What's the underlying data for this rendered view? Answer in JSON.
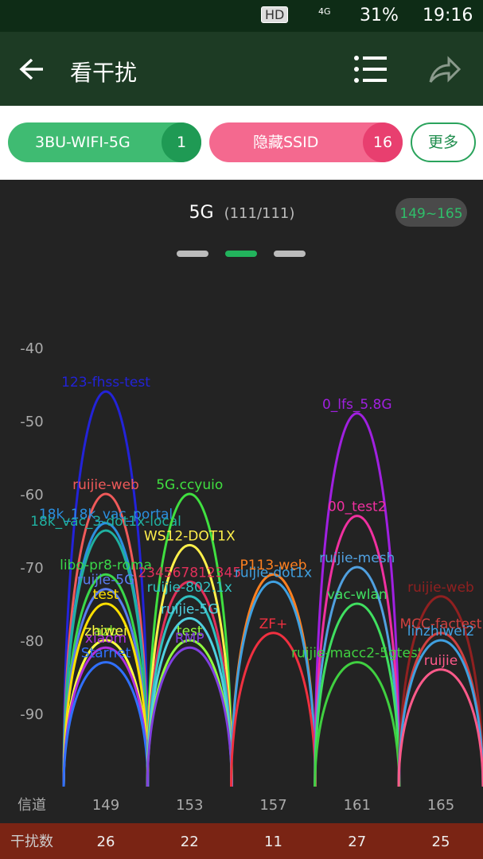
{
  "status_bar": {
    "hd": "HD",
    "network": "4G",
    "battery": "31%",
    "time": "19:16"
  },
  "header": {
    "title": "看干扰"
  },
  "chips": [
    {
      "label": "3BU-WIFI-5G",
      "count": 1
    },
    {
      "label": "隐藏SSID",
      "count": 16
    }
  ],
  "chips_more": "更多",
  "chart_data": {
    "type": "arc",
    "title": "5G",
    "subtitle": "(111/111)",
    "range_label": "149~165",
    "x_label": "信道",
    "count_label": "干扰数",
    "categories": [
      149,
      153,
      157,
      161,
      165
    ],
    "interference_counts": [
      26,
      22,
      11,
      27,
      25
    ],
    "ylim": [
      -100,
      -30
    ],
    "yticks": [
      -40,
      -50,
      -60,
      -70,
      -80,
      -90
    ],
    "series": [
      {
        "name": "123-fhss-test",
        "channel": 149,
        "value": -46,
        "color": "#2323d8"
      },
      {
        "name": "ruijie-web",
        "channel": 149,
        "value": -60,
        "color": "#f05a5a"
      },
      {
        "name": "18k_18k_vac_portal",
        "channel": 149,
        "value": -64,
        "color": "#2b8fe0"
      },
      {
        "name": "18k_vac_3-dot1x-local",
        "channel": 149,
        "value": -65,
        "color": "#20b0a0"
      },
      {
        "name": "libo-pr8-roma",
        "channel": 149,
        "value": -71,
        "color": "#3ad84a"
      },
      {
        "name": "ruijie-5G",
        "channel": 149,
        "value": -73,
        "color": "#5a7cf0"
      },
      {
        "name": "test",
        "channel": 149,
        "value": -75,
        "color": "#ffe000"
      },
      {
        "name": "azb",
        "channel": 149,
        "value": -80,
        "color": "#7adf30"
      },
      {
        "name": "zhiwei",
        "channel": 149,
        "value": -80,
        "color": "#ffff40"
      },
      {
        "name": "xiaom",
        "channel": 149,
        "value": -81,
        "color": "#b030e0"
      },
      {
        "name": "Starnet",
        "channel": 149,
        "value": -83,
        "color": "#3070ff"
      },
      {
        "name": "5G.ccyuio",
        "channel": 153,
        "value": -60,
        "color": "#40e040"
      },
      {
        "name": "WS12-DOT1X",
        "channel": 153,
        "value": -67,
        "color": "#fff04a"
      },
      {
        "name": "234567812345",
        "channel": 153,
        "value": -72,
        "color": "#e0305a"
      },
      {
        "name": "ruijie-802.1x",
        "channel": 153,
        "value": -74,
        "color": "#30c0c0"
      },
      {
        "name": "ruijie-5G",
        "channel": 153,
        "value": -77,
        "color": "#50d0e0"
      },
      {
        "name": "test",
        "channel": 153,
        "value": -80,
        "color": "#90ff40"
      },
      {
        "name": "RMP",
        "channel": 153,
        "value": -81,
        "color": "#8040e0"
      },
      {
        "name": "P113-web",
        "channel": 157,
        "value": -71,
        "color": "#ff8020"
      },
      {
        "name": "ruijie-dot1x",
        "channel": 157,
        "value": -72,
        "color": "#40a0e0"
      },
      {
        "name": "ZF+",
        "channel": 157,
        "value": -79,
        "color": "#f03040"
      },
      {
        "name": "0_lfs_5.8G",
        "channel": 161,
        "value": -49,
        "color": "#a020e0"
      },
      {
        "name": "00_test2",
        "channel": 161,
        "value": -63,
        "color": "#f030a0"
      },
      {
        "name": "ruijie-mesh",
        "channel": 161,
        "value": -70,
        "color": "#50a0e0"
      },
      {
        "name": "vac-wlan",
        "channel": 161,
        "value": -75,
        "color": "#40e060"
      },
      {
        "name": "ruijie-macc2-5gtest",
        "channel": 161,
        "value": -83,
        "color": "#40d040"
      },
      {
        "name": "ruijie-web",
        "channel": 165,
        "value": -74,
        "color": "#902020"
      },
      {
        "name": "MCC-factest",
        "channel": 165,
        "value": -79,
        "color": "#d04040"
      },
      {
        "name": "linzhiwei2",
        "channel": 165,
        "value": -80,
        "color": "#40a0e0"
      },
      {
        "name": "ruijie",
        "channel": 165,
        "value": -84,
        "color": "#ff5a8a"
      }
    ]
  }
}
